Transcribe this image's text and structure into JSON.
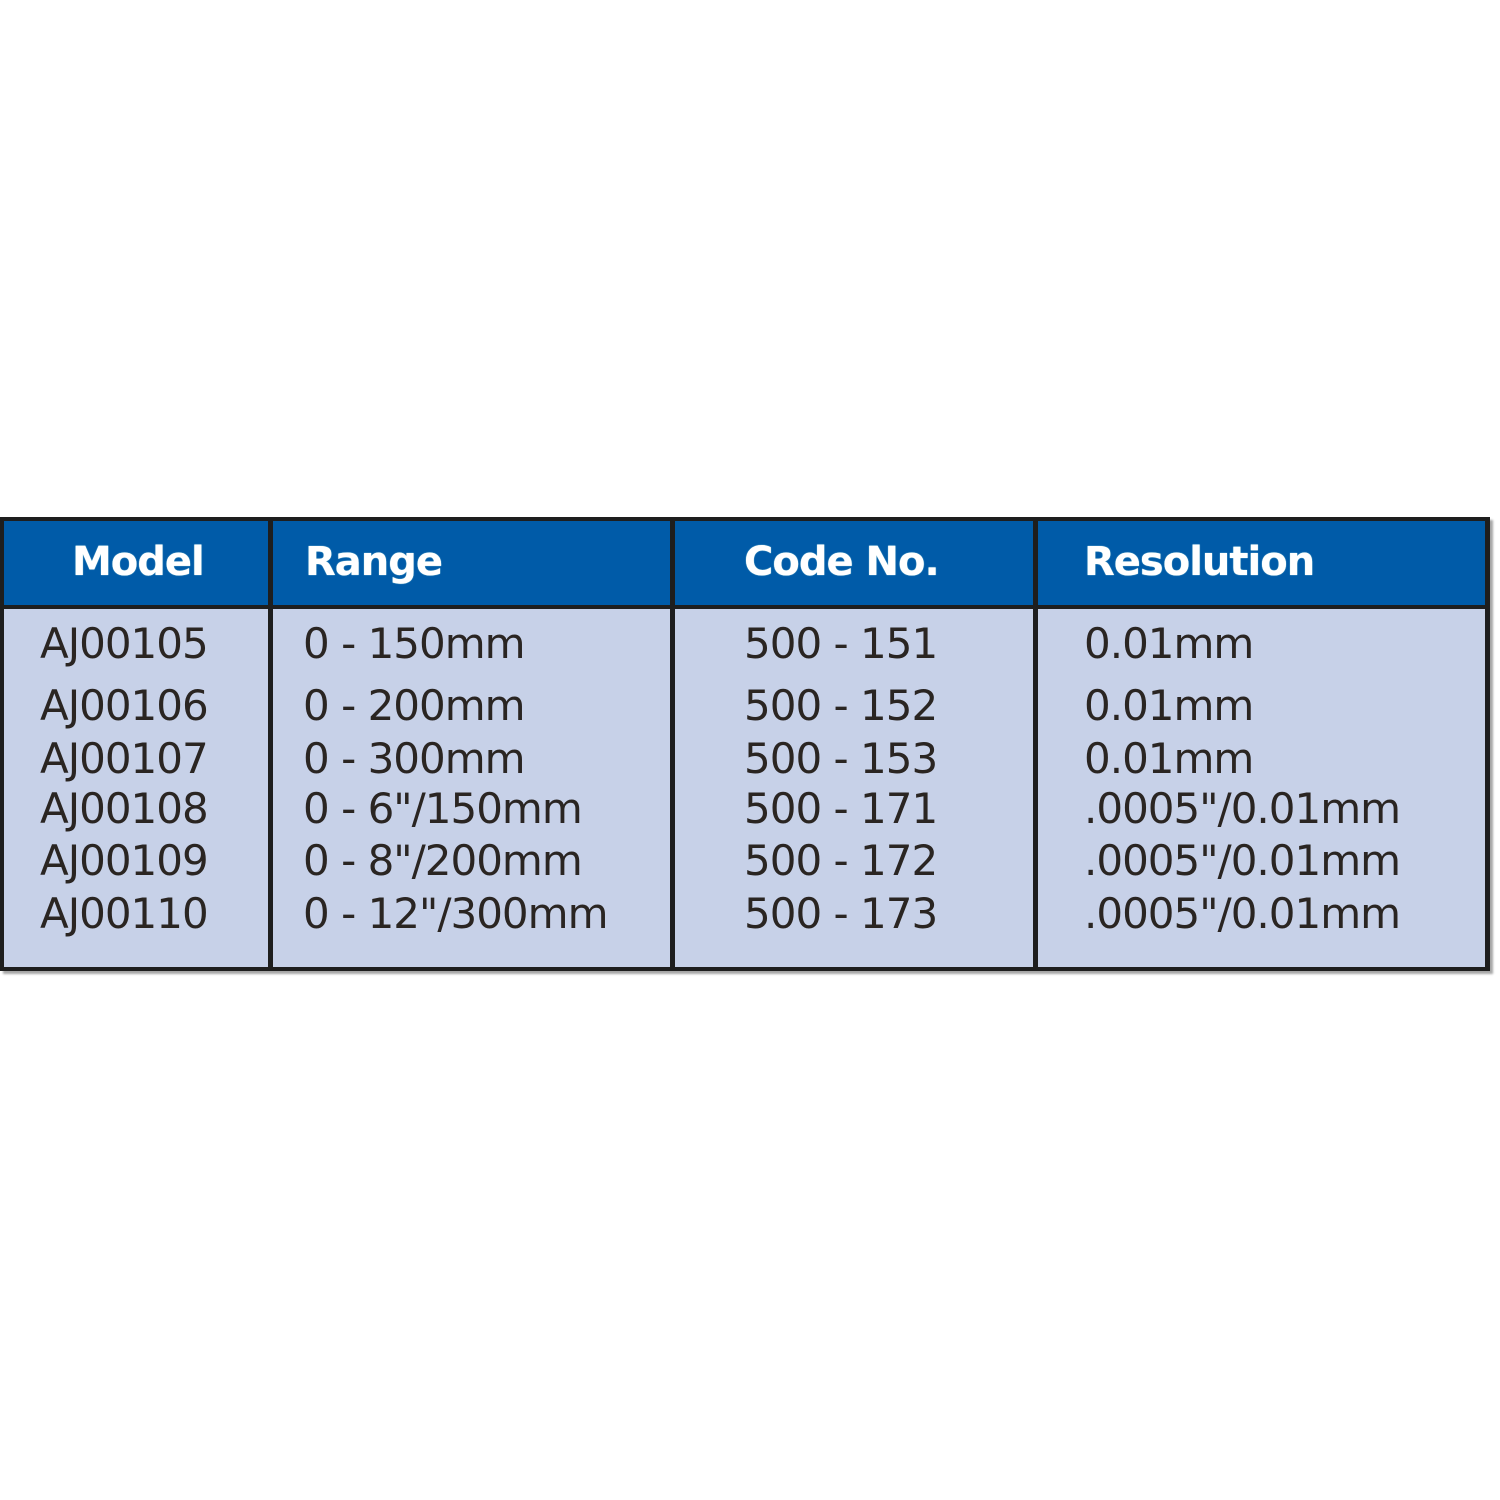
{
  "table": {
    "header_color": "#005BA8",
    "body_color": "#C7D1E8",
    "columns": [
      "Model",
      "Range",
      "Code No.",
      "Resolution"
    ],
    "rows": [
      [
        "AJ00105",
        "0 - 150mm",
        "500 - 151",
        "0.01mm"
      ],
      [
        "AJ00106",
        "0 - 200mm",
        "500 - 152",
        "0.01mm"
      ],
      [
        "AJ00107",
        "0 - 300mm",
        "500 - 153",
        "0.01mm"
      ],
      [
        "AJ00108",
        "0 - 6\"/150mm",
        "500 - 171",
        ".0005\"/0.01mm"
      ],
      [
        "AJ00109",
        "0 - 8\"/200mm",
        "500 - 172",
        ".0005\"/0.01mm"
      ],
      [
        "AJ00110",
        "0 - 12\"/300mm",
        "500 - 173",
        ".0005\"/0.01mm"
      ]
    ]
  }
}
